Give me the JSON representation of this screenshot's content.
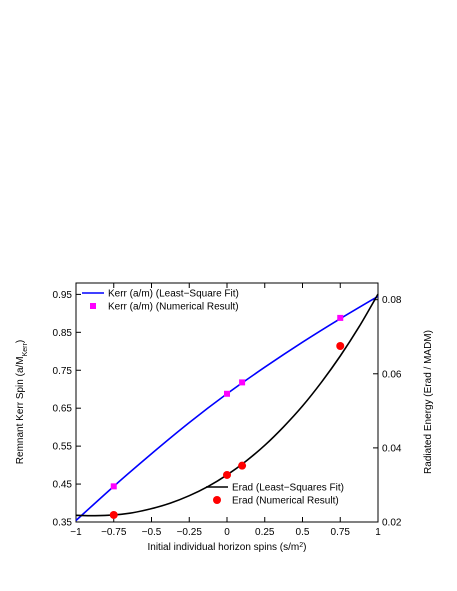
{
  "chart_data": {
    "type": "line",
    "xlabel": "Initial individual horizon spins (s/m",
    "xlabel_sup": "2",
    "xlabel_end": ")",
    "ylabel_left": "Remnant Kerr Spin (a/M",
    "ylabel_left_sub": "Kerr",
    "ylabel_left_end": ")",
    "ylabel_right": "Radiated Energy (Erad / MADM)",
    "x_ticks": [
      -1,
      -0.75,
      -0.5,
      -0.25,
      0,
      0.25,
      0.5,
      0.75,
      1
    ],
    "x_tick_labels": [
      "−1",
      "−0.75",
      "−0.5",
      "−0.25",
      "0",
      "0.25",
      "0.5",
      "0.75",
      "1"
    ],
    "y_left_ticks": [
      0.35,
      0.45,
      0.55,
      0.65,
      0.75,
      0.85,
      0.95
    ],
    "y_left_tick_labels": [
      "0.35",
      "0.45",
      "0.55",
      "0.65",
      "0.75",
      "0.85",
      "0.95"
    ],
    "y_right_ticks": [
      0.02,
      0.04,
      0.06,
      0.08
    ],
    "y_right_tick_labels": [
      "0.02",
      "0.04",
      "0.06",
      "0.08"
    ],
    "xlim": [
      -1,
      1
    ],
    "ylim_left": [
      0.35,
      0.98
    ],
    "ylim_right": [
      0.02,
      0.0845
    ],
    "grid": false,
    "series": [
      {
        "name": "Kerr (a/m) (Least−Square Fit)",
        "kind": "line",
        "axis": "left",
        "color": "#0000ff",
        "x": [
          -1,
          -0.75,
          -0.5,
          -0.25,
          0,
          0.25,
          0.5,
          0.75,
          1
        ],
        "y": [
          0.354,
          0.444,
          0.53,
          0.612,
          0.688,
          0.758,
          0.824,
          0.886,
          0.945
        ]
      },
      {
        "name": "Kerr (a/m) (Numerical Result)",
        "kind": "markers",
        "marker": "square",
        "axis": "left",
        "color": "#ff00ff",
        "x": [
          -0.75,
          0,
          0.1,
          0.75
        ],
        "y": [
          0.444,
          0.688,
          0.718,
          0.888
        ]
      },
      {
        "name": "Erad (Least−Squares Fit)",
        "kind": "line",
        "axis": "right",
        "color": "#000000",
        "x": [
          -1,
          -0.875,
          -0.75,
          -0.625,
          -0.5,
          -0.375,
          -0.25,
          -0.125,
          0,
          0.125,
          0.25,
          0.375,
          0.5,
          0.625,
          0.75,
          0.875,
          1
        ],
        "y": [
          0.0218,
          0.0217,
          0.0219,
          0.0225,
          0.0236,
          0.0251,
          0.0271,
          0.0296,
          0.0327,
          0.0364,
          0.0407,
          0.0457,
          0.0513,
          0.0577,
          0.0648,
          0.0727,
          0.0815
        ]
      },
      {
        "name": "Erad (Numerical Result)",
        "kind": "markers",
        "marker": "circle",
        "axis": "right",
        "color": "#ff0000",
        "x": [
          -0.75,
          0,
          0.1,
          0.75
        ],
        "y": [
          0.0219,
          0.0327,
          0.0352,
          0.0675
        ]
      }
    ],
    "legends": [
      {
        "position": "top-left",
        "entries": [
          0,
          1
        ]
      },
      {
        "position": "bottom-right",
        "entries": [
          2,
          3
        ]
      }
    ]
  }
}
